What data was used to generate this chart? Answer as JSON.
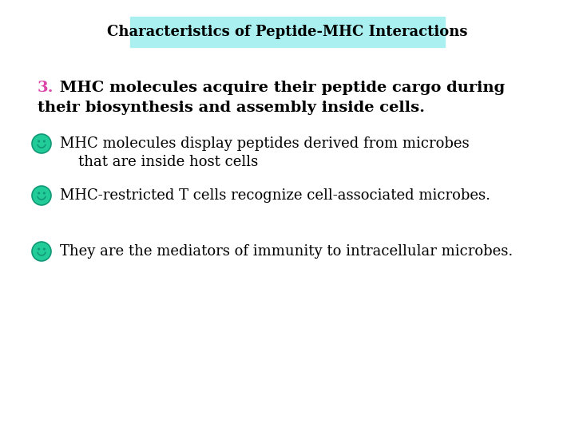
{
  "title": "Characteristics of Peptide-MHC Interactions",
  "title_bg_color": "#aaf0f0",
  "title_fontsize": 13,
  "background_color": "#ffffff",
  "number_label": "3.",
  "number_color": "#dd44aa",
  "main_text_line1": " MHC molecules acquire their peptide cargo during",
  "main_text_line2": "their biosynthesis and assembly inside cells.",
  "main_fontsize": 14,
  "bullet_color": "#22cc99",
  "bullet_edge_color": "#119977",
  "bullets": [
    {
      "line1": "MHC molecules display peptides derived from microbes",
      "line2": "    that are inside host cells",
      "fontsize": 13
    },
    {
      "line1": "MHC-restricted T cells recognize cell-associated microbes.",
      "line2": null,
      "fontsize": 13
    },
    {
      "line1": "They are the mediators of immunity to intracellular microbes.",
      "line2": null,
      "fontsize": 13
    }
  ]
}
